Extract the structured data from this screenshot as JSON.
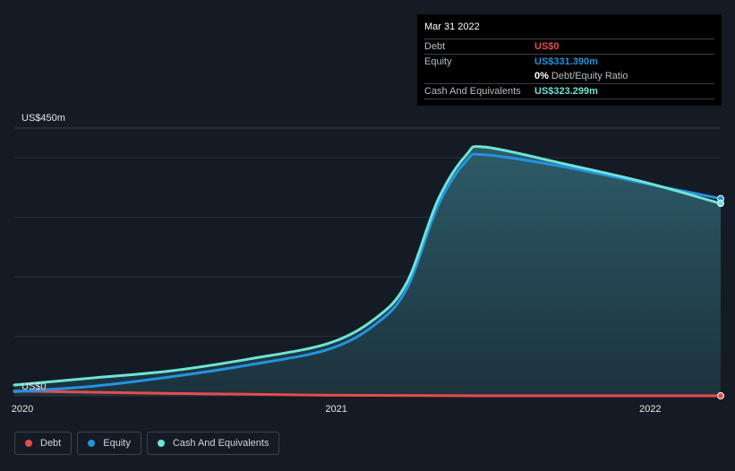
{
  "tooltip": {
    "date": "Mar 31 2022",
    "debt_label": "Debt",
    "debt_value": "US$0",
    "equity_label": "Equity",
    "equity_value": "US$331.390m",
    "ratio_value": "0%",
    "ratio_label": "Debt/Equity Ratio",
    "cash_label": "Cash And Equivalents",
    "cash_value": "US$323.299m"
  },
  "legend": [
    {
      "label": "Debt",
      "color": "#e64c4c"
    },
    {
      "label": "Equity",
      "color": "#2394df"
    },
    {
      "label": "Cash And Equivalents",
      "color": "#6ee4d6"
    }
  ],
  "colors": {
    "debt": "#e64c4c",
    "equity": "#2394df",
    "cash": "#6ee4d6",
    "area": "#2f5f6c"
  },
  "chart_data": {
    "type": "line",
    "title": "",
    "y_top_label": "US$450m",
    "y_bottom_label": "US$0",
    "ylim": [
      0,
      450
    ],
    "xlim": [
      2020.0,
      2022.25
    ],
    "x_ticks": [
      2020,
      2021,
      2022
    ],
    "x_tick_labels": [
      "2020",
      "2021",
      "2022"
    ],
    "series": [
      {
        "name": "Cash And Equivalents",
        "x": [
          2020.0,
          2020.25,
          2020.5,
          2020.75,
          2021.0,
          2021.15,
          2021.25,
          2021.35,
          2021.44,
          2021.5,
          2021.75,
          2022.0,
          2022.25
        ],
        "values": [
          18,
          30,
          42,
          62,
          88,
          130,
          190,
          330,
          405,
          418,
          390,
          360,
          323.3
        ]
      },
      {
        "name": "Equity",
        "x": [
          2020.0,
          2020.25,
          2020.5,
          2020.75,
          2021.0,
          2021.15,
          2021.25,
          2021.35,
          2021.44,
          2021.5,
          2021.75,
          2022.0,
          2022.25
        ],
        "values": [
          7,
          16,
          32,
          52,
          78,
          120,
          180,
          320,
          395,
          405,
          385,
          358,
          331.4
        ]
      },
      {
        "name": "Debt",
        "x": [
          2020.0,
          2020.5,
          2021.0,
          2021.5,
          2022.0,
          2022.25
        ],
        "values": [
          8,
          4,
          1,
          0,
          0,
          0
        ]
      }
    ]
  }
}
